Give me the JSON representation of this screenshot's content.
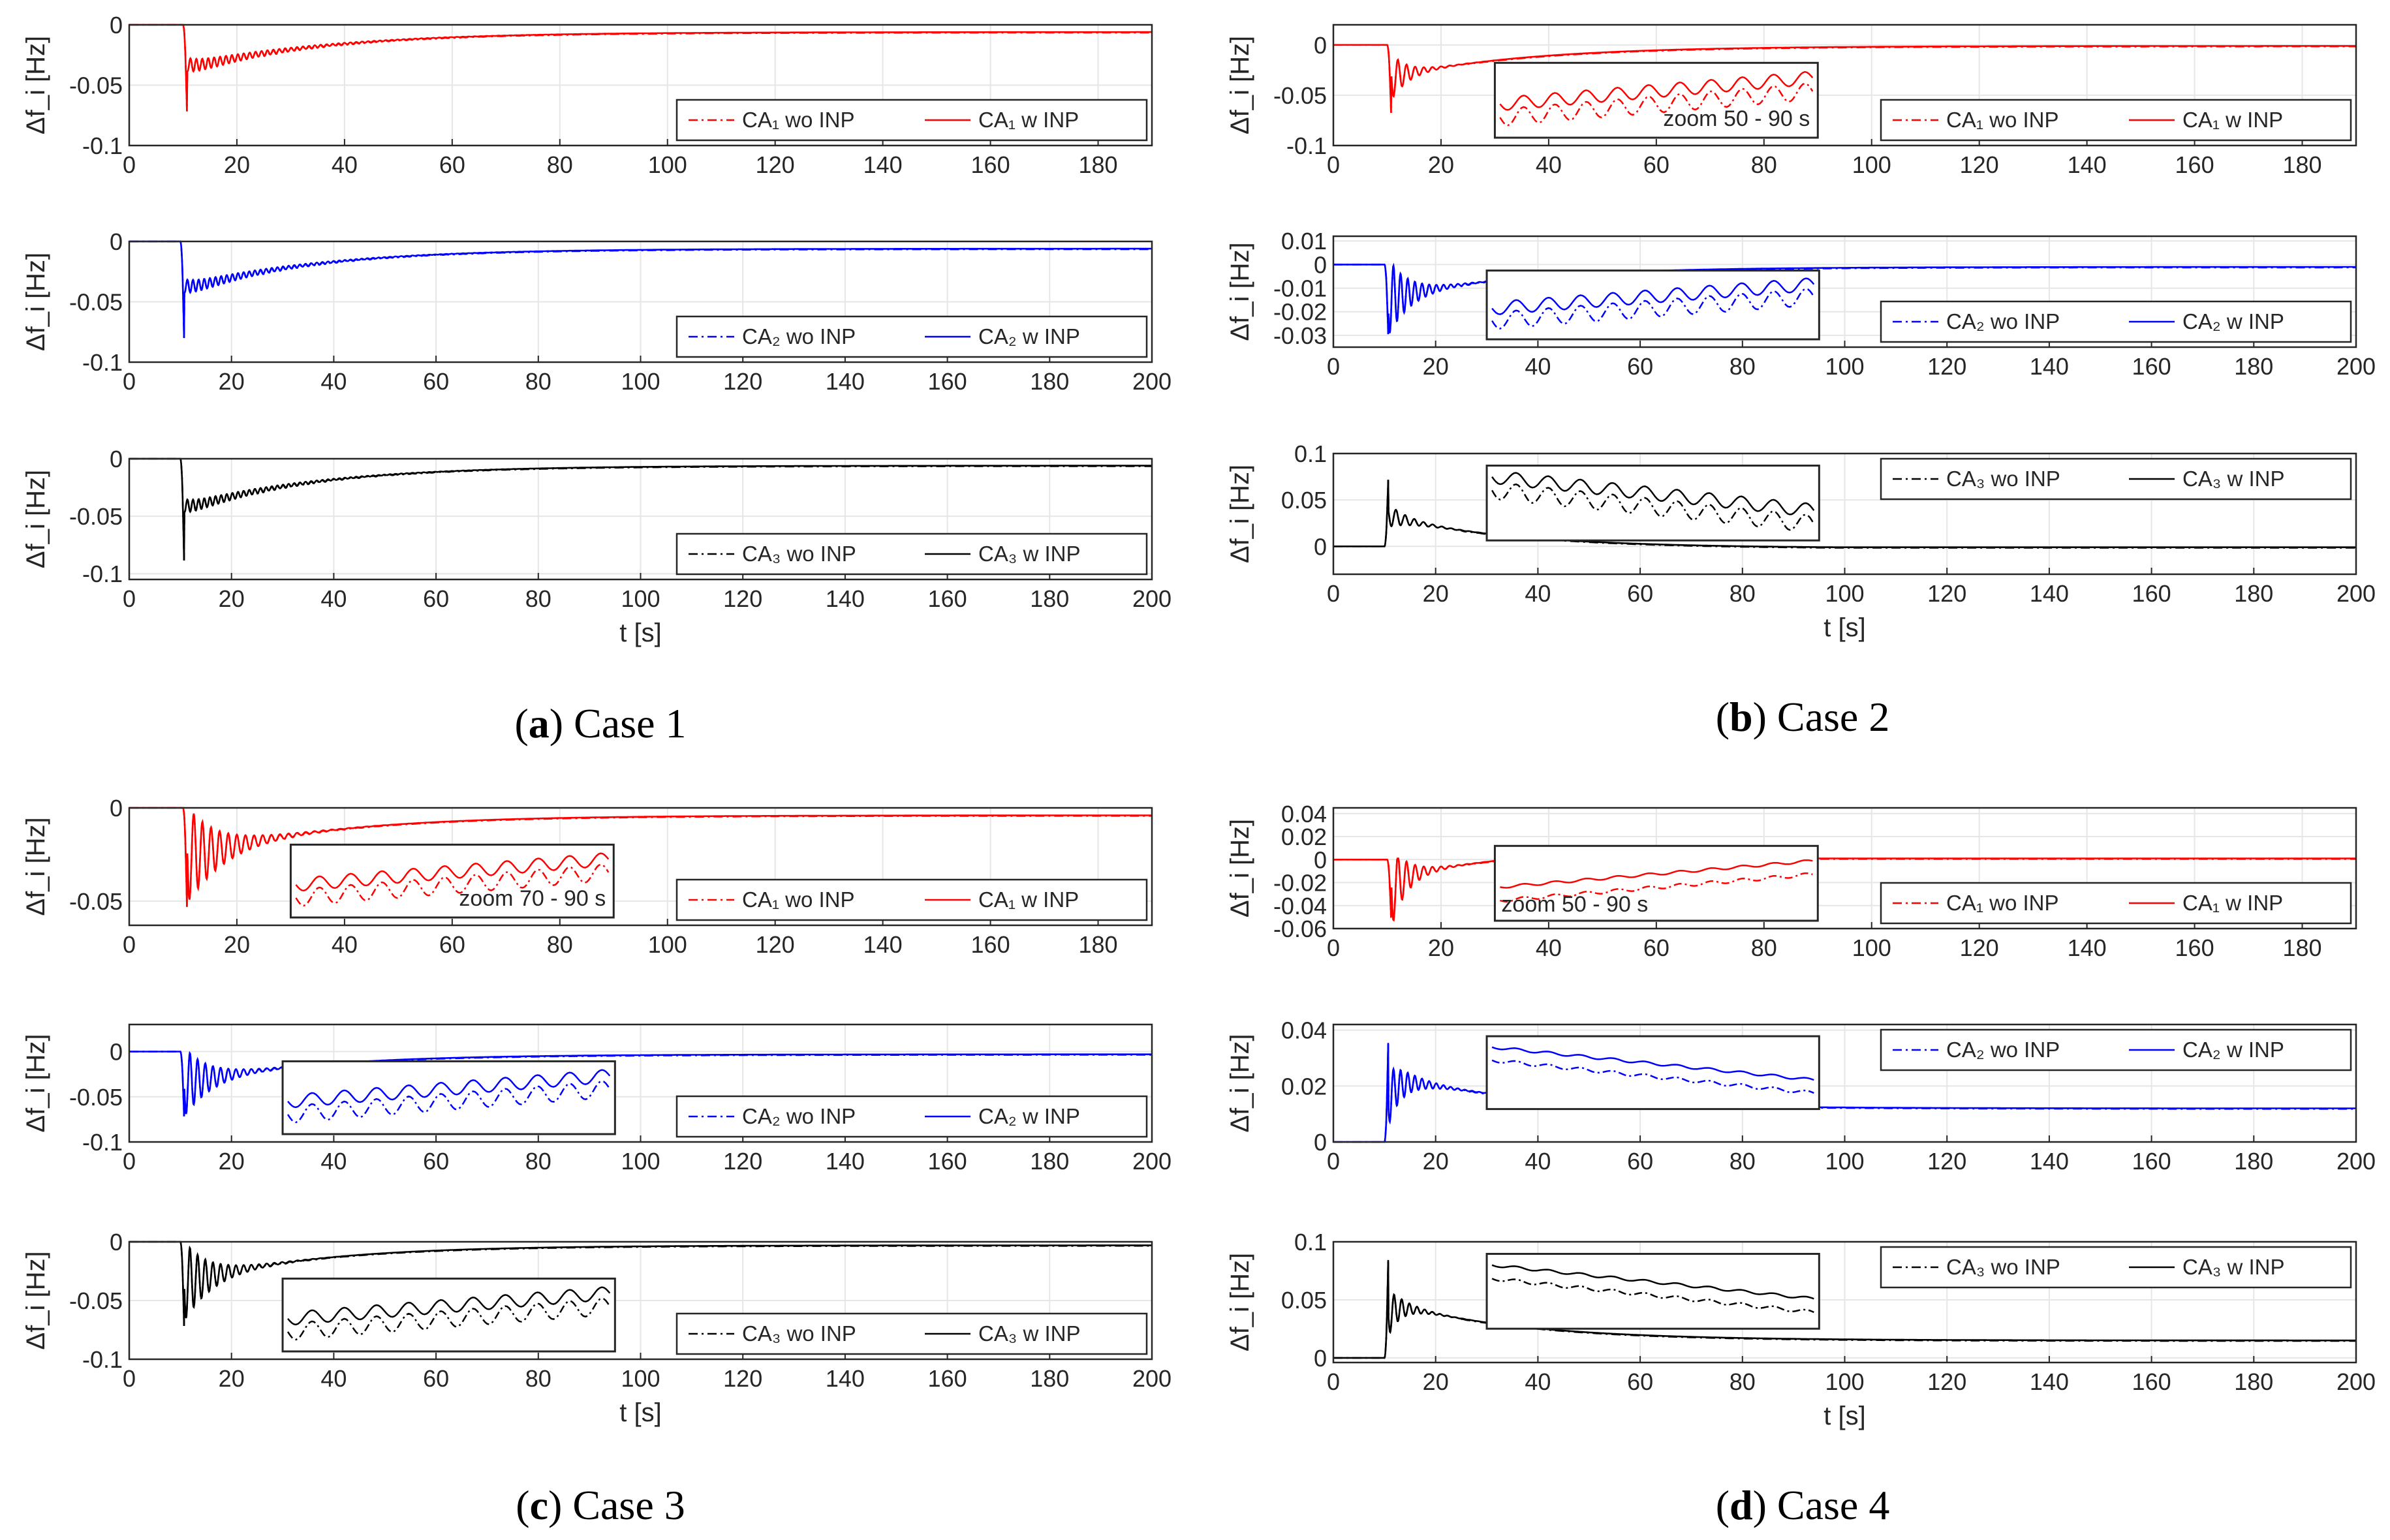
{
  "colors": {
    "CA1": "#ff0000",
    "CA2": "#0000ff",
    "CA3": "#000000"
  },
  "captions": [
    {
      "label": "(a)",
      "text": "Case 1"
    },
    {
      "label": "(b)",
      "text": "Case 2"
    },
    {
      "label": "(c)",
      "text": "Case 3"
    },
    {
      "label": "(d)",
      "text": "Case 4"
    }
  ],
  "chart_data": [
    {
      "panel": "a",
      "row": 1,
      "type": "line",
      "xlabel": "",
      "ylabel": "Δf_i [Hz]",
      "xlim": [
        0,
        190
      ],
      "ylim": [
        -0.1,
        0
      ],
      "xticks": [
        0,
        20,
        40,
        60,
        80,
        100,
        120,
        140,
        160,
        180
      ],
      "yticks": [
        0,
        -0.05,
        -0.1
      ],
      "grid": true,
      "legend_position": "bottom-right",
      "area": "CA1",
      "step_time": 10,
      "nadir": -0.085,
      "settle_value": -0.006,
      "osc_amp": 0.006,
      "osc_period": 1.1,
      "osc_decay": 14,
      "series": [
        {
          "name": "CA₁ wo INP",
          "style": "dash-dot"
        },
        {
          "name": "CA₁ w INP",
          "style": "solid"
        }
      ],
      "inset": null
    },
    {
      "panel": "a",
      "row": 2,
      "type": "line",
      "xlabel": "",
      "ylabel": "Δf_i [Hz]",
      "xlim": [
        0,
        200
      ],
      "ylim": [
        -0.1,
        0
      ],
      "xticks": [
        0,
        20,
        40,
        60,
        80,
        100,
        120,
        140,
        160,
        180,
        200
      ],
      "yticks": [
        0,
        -0.05,
        -0.1
      ],
      "grid": true,
      "legend_position": "bottom-right",
      "area": "CA2",
      "step_time": 10,
      "nadir": -0.095,
      "settle_value": -0.006,
      "osc_amp": 0.006,
      "osc_period": 1.1,
      "osc_decay": 14,
      "series": [
        {
          "name": "CA₂ wo INP",
          "style": "dash-dot"
        },
        {
          "name": "CA₂ w INP",
          "style": "solid"
        }
      ],
      "inset": null
    },
    {
      "panel": "a",
      "row": 3,
      "type": "line",
      "xlabel": "t [s]",
      "ylabel": "Δf_i [Hz]",
      "xlim": [
        0,
        200
      ],
      "ylim": [
        -0.105,
        0
      ],
      "xticks": [
        0,
        20,
        40,
        60,
        80,
        100,
        120,
        140,
        160,
        180,
        200
      ],
      "yticks": [
        0,
        -0.05,
        -0.1
      ],
      "grid": true,
      "legend_position": "bottom-right",
      "area": "CA3",
      "step_time": 10,
      "nadir": -0.105,
      "settle_value": -0.006,
      "osc_amp": 0.006,
      "osc_period": 1.1,
      "osc_decay": 14,
      "series": [
        {
          "name": "CA₃ wo INP",
          "style": "dash-dot"
        },
        {
          "name": "CA₃ w INP",
          "style": "solid"
        }
      ],
      "inset": null
    },
    {
      "panel": "b",
      "row": 1,
      "type": "line",
      "xlabel": "",
      "ylabel": "Δf_i [Hz]",
      "xlim": [
        0,
        190
      ],
      "ylim": [
        -0.1,
        0.02
      ],
      "xticks": [
        0,
        20,
        40,
        60,
        80,
        100,
        120,
        140,
        160,
        180
      ],
      "yticks": [
        0,
        -0.05,
        -0.1
      ],
      "grid": true,
      "legend_position": "bottom-right",
      "area": "CA1",
      "step_time": 10,
      "nadir": -0.08,
      "settle_value": -0.001,
      "osc_amp": 0.03,
      "osc_period": 1.6,
      "osc_decay": 3,
      "series": [
        {
          "name": "CA₁ wo INP",
          "style": "dash-dot"
        },
        {
          "name": "CA₁ w INP",
          "style": "solid"
        }
      ],
      "inset": {
        "label": "zoom 50 - 90 s",
        "x_from": 30,
        "x_to": 90
      }
    },
    {
      "panel": "b",
      "row": 2,
      "type": "line",
      "xlabel": "",
      "ylabel": "Δf_i [Hz]",
      "xlim": [
        0,
        200
      ],
      "ylim": [
        -0.035,
        0.012
      ],
      "xticks": [
        0,
        20,
        40,
        60,
        80,
        100,
        120,
        140,
        160,
        180,
        200
      ],
      "yticks": [
        0.01,
        0,
        -0.01,
        -0.02,
        -0.03
      ],
      "grid": true,
      "legend_position": "bottom-right",
      "area": "CA2",
      "step_time": 10,
      "nadir": -0.035,
      "settle_value": -0.001,
      "osc_amp": 0.02,
      "osc_period": 1.4,
      "osc_decay": 4,
      "series": [
        {
          "name": "CA₂ wo INP",
          "style": "dash-dot"
        },
        {
          "name": "CA₂ w INP",
          "style": "solid"
        }
      ],
      "inset": {
        "label": "",
        "x_from": 30,
        "x_to": 95
      }
    },
    {
      "panel": "b",
      "row": 3,
      "type": "line",
      "xlabel": "t [s]",
      "ylabel": "Δf_i [Hz]",
      "xlim": [
        0,
        200
      ],
      "ylim": [
        -0.03,
        0.1
      ],
      "xticks": [
        0,
        20,
        40,
        60,
        80,
        100,
        120,
        140,
        160,
        180,
        200
      ],
      "yticks": [
        0.1,
        0.05,
        0
      ],
      "grid": true,
      "legend_position": "top-right",
      "area": "CA3",
      "step_time": 10,
      "nadir": 0.085,
      "settle_value": -0.002,
      "osc_amp": 0.015,
      "osc_period": 1.8,
      "osc_decay": 4,
      "series": [
        {
          "name": "CA₃ wo INP",
          "style": "dash-dot"
        },
        {
          "name": "CA₃ w INP",
          "style": "solid"
        }
      ],
      "inset": {
        "label": "",
        "x_from": 30,
        "x_to": 95
      }
    },
    {
      "panel": "c",
      "row": 1,
      "type": "line",
      "xlabel": "",
      "ylabel": "Δf_i [Hz]",
      "xlim": [
        0,
        190
      ],
      "ylim": [
        -0.063,
        0
      ],
      "xticks": [
        0,
        20,
        40,
        60,
        80,
        100,
        120,
        140,
        160,
        180
      ],
      "yticks": [
        0,
        -0.05
      ],
      "grid": true,
      "legend_position": "bottom-right",
      "area": "CA1",
      "step_time": 10,
      "nadir": -0.063,
      "settle_value": -0.004,
      "osc_amp": 0.03,
      "osc_period": 1.6,
      "osc_decay": 6,
      "series": [
        {
          "name": "CA₁ wo INP",
          "style": "dash-dot"
        },
        {
          "name": "CA₁ w INP",
          "style": "solid"
        }
      ],
      "inset": {
        "label": "zoom 70 - 90 s",
        "x_from": 30,
        "x_to": 90
      }
    },
    {
      "panel": "c",
      "row": 2,
      "type": "line",
      "xlabel": "",
      "ylabel": "Δf_i [Hz]",
      "xlim": [
        0,
        200
      ],
      "ylim": [
        -0.1,
        0.03
      ],
      "xticks": [
        0,
        20,
        40,
        60,
        80,
        100,
        120,
        140,
        160,
        180,
        200
      ],
      "yticks": [
        0,
        -0.05,
        -0.1
      ],
      "grid": true,
      "legend_position": "bottom-right",
      "area": "CA2",
      "step_time": 10,
      "nadir": -0.085,
      "settle_value": -0.003,
      "osc_amp": 0.045,
      "osc_period": 1.5,
      "osc_decay": 5,
      "series": [
        {
          "name": "CA₂ wo INP",
          "style": "dash-dot"
        },
        {
          "name": "CA₂ w INP",
          "style": "solid"
        }
      ],
      "inset": {
        "label": "",
        "x_from": 30,
        "x_to": 95
      }
    },
    {
      "panel": "c",
      "row": 3,
      "type": "line",
      "xlabel": "t [s]",
      "ylabel": "Δf_i [Hz]",
      "xlim": [
        0,
        200
      ],
      "ylim": [
        -0.1,
        0
      ],
      "xticks": [
        0,
        20,
        40,
        60,
        80,
        100,
        120,
        140,
        160,
        180,
        200
      ],
      "yticks": [
        0,
        -0.05,
        -0.1
      ],
      "grid": true,
      "legend_position": "bottom-right",
      "area": "CA3",
      "step_time": 10,
      "nadir": -0.085,
      "settle_value": -0.003,
      "osc_amp": 0.04,
      "osc_period": 1.5,
      "osc_decay": 5,
      "series": [
        {
          "name": "CA₃ wo INP",
          "style": "dash-dot"
        },
        {
          "name": "CA₃ w INP",
          "style": "solid"
        }
      ],
      "inset": {
        "label": "",
        "x_from": 30,
        "x_to": 95
      }
    },
    {
      "panel": "d",
      "row": 1,
      "type": "line",
      "xlabel": "",
      "ylabel": "Δf_i [Hz]",
      "xlim": [
        0,
        190
      ],
      "ylim": [
        -0.06,
        0.045
      ],
      "xticks": [
        0,
        20,
        40,
        60,
        80,
        100,
        120,
        140,
        160,
        180
      ],
      "yticks": [
        0.04,
        0.02,
        0,
        -0.02,
        -0.04,
        -0.06
      ],
      "grid": true,
      "legend_position": "bottom-right",
      "area": "CA1",
      "step_time": 10,
      "nadir": -0.06,
      "settle_value": 0.012,
      "osc_amp": 0.045,
      "osc_period": 1.6,
      "osc_decay": 3,
      "series": [
        {
          "name": "CA₁ wo INP",
          "style": "dash-dot"
        },
        {
          "name": "CA₁ w INP",
          "style": "solid"
        }
      ],
      "inset": {
        "label": "zoom 50 - 90 s",
        "x_from": 30,
        "x_to": 90
      }
    },
    {
      "panel": "d",
      "row": 2,
      "type": "line",
      "xlabel": "",
      "ylabel": "Δf_i [Hz]",
      "xlim": [
        0,
        200
      ],
      "ylim": [
        0,
        0.042
      ],
      "xticks": [
        0,
        20,
        40,
        60,
        80,
        100,
        120,
        140,
        160,
        180,
        200
      ],
      "yticks": [
        0.04,
        0.02,
        0
      ],
      "grid": true,
      "legend_position": "top-right",
      "area": "CA2",
      "step_time": 10,
      "nadir": 0.042,
      "settle_value": 0.012,
      "osc_amp": 0.012,
      "osc_period": 1.4,
      "osc_decay": 4,
      "series": [
        {
          "name": "CA₂ wo INP",
          "style": "dash-dot"
        },
        {
          "name": "CA₂ w INP",
          "style": "solid"
        }
      ],
      "inset": {
        "label": "",
        "x_from": 30,
        "x_to": 95
      }
    },
    {
      "panel": "d",
      "row": 3,
      "type": "line",
      "xlabel": "t [s]",
      "ylabel": "Δf_i [Hz]",
      "xlim": [
        0,
        200
      ],
      "ylim": [
        -0.004,
        0.1
      ],
      "xticks": [
        0,
        20,
        40,
        60,
        80,
        100,
        120,
        140,
        160,
        180,
        200
      ],
      "yticks": [
        0.1,
        0.05,
        0
      ],
      "grid": true,
      "legend_position": "top-right",
      "area": "CA3",
      "step_time": 10,
      "nadir": 0.1,
      "settle_value": 0.015,
      "osc_amp": 0.025,
      "osc_period": 1.5,
      "osc_decay": 3,
      "series": [
        {
          "name": "CA₃ wo INP",
          "style": "dash-dot"
        },
        {
          "name": "CA₃ w INP",
          "style": "solid"
        }
      ],
      "inset": {
        "label": "",
        "x_from": 30,
        "x_to": 95
      }
    }
  ]
}
